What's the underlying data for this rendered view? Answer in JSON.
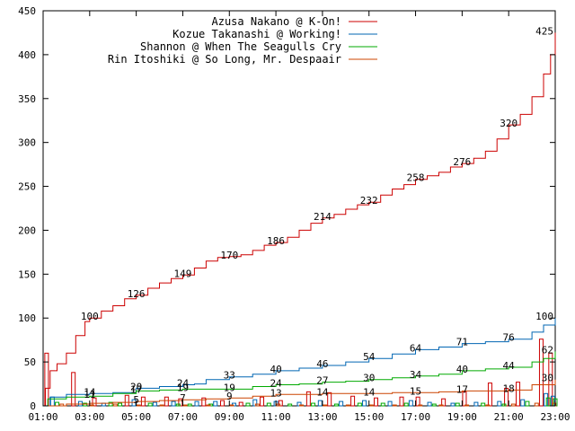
{
  "chart_data": {
    "type": "line",
    "title": "",
    "xlabel": "",
    "ylabel": "",
    "legend_position": "top-right",
    "grid": false,
    "xlim": [
      1,
      23
    ],
    "ylim": [
      0,
      450
    ],
    "x_ticks": [
      {
        "value": 1,
        "label": "01:00"
      },
      {
        "value": 3,
        "label": "03:00"
      },
      {
        "value": 5,
        "label": "05:00"
      },
      {
        "value": 7,
        "label": "07:00"
      },
      {
        "value": 9,
        "label": "09:00"
      },
      {
        "value": 11,
        "label": "11:00"
      },
      {
        "value": 13,
        "label": "13:00"
      },
      {
        "value": 15,
        "label": "15:00"
      },
      {
        "value": 17,
        "label": "17:00"
      },
      {
        "value": 19,
        "label": "19:00"
      },
      {
        "value": 21,
        "label": "21:00"
      },
      {
        "value": 23,
        "label": "23:00"
      }
    ],
    "y_ticks": [
      0,
      50,
      100,
      150,
      200,
      250,
      300,
      350,
      400,
      450
    ],
    "series": [
      {
        "name": "Azusa Nakano @ K-On!",
        "color": "#cc0000",
        "points": [
          [
            1,
            0
          ],
          [
            1.1,
            20
          ],
          [
            1.3,
            40
          ],
          [
            1.6,
            48
          ],
          [
            2,
            60
          ],
          [
            2.4,
            80
          ],
          [
            2.8,
            96
          ],
          [
            3,
            100
          ],
          [
            3.5,
            108
          ],
          [
            4,
            114
          ],
          [
            4.5,
            122
          ],
          [
            5,
            126
          ],
          [
            5.5,
            134
          ],
          [
            6,
            140
          ],
          [
            6.5,
            145
          ],
          [
            7,
            149
          ],
          [
            7.5,
            157
          ],
          [
            8,
            165
          ],
          [
            8.5,
            169
          ],
          [
            9,
            170
          ],
          [
            9.5,
            172
          ],
          [
            10,
            177
          ],
          [
            10.5,
            183
          ],
          [
            11,
            186
          ],
          [
            11.5,
            192
          ],
          [
            12,
            200
          ],
          [
            12.5,
            208
          ],
          [
            13,
            214
          ],
          [
            13.5,
            218
          ],
          [
            14,
            224
          ],
          [
            14.5,
            229
          ],
          [
            15,
            232
          ],
          [
            15.5,
            240
          ],
          [
            16,
            247
          ],
          [
            16.5,
            252
          ],
          [
            17,
            258
          ],
          [
            17.5,
            262
          ],
          [
            18,
            266
          ],
          [
            18.5,
            272
          ],
          [
            19,
            276
          ],
          [
            19.5,
            282
          ],
          [
            20,
            290
          ],
          [
            20.5,
            304
          ],
          [
            21,
            320
          ],
          [
            21.5,
            332
          ],
          [
            22,
            352
          ],
          [
            22.5,
            378
          ],
          [
            22.8,
            400
          ],
          [
            23,
            425
          ]
        ],
        "labels": [
          {
            "x": 3,
            "y": 100,
            "text": "100"
          },
          {
            "x": 5,
            "y": 126,
            "text": "126"
          },
          {
            "x": 7,
            "y": 149,
            "text": "149"
          },
          {
            "x": 9,
            "y": 170,
            "text": "170"
          },
          {
            "x": 11,
            "y": 186,
            "text": "186"
          },
          {
            "x": 13,
            "y": 214,
            "text": "214"
          },
          {
            "x": 15,
            "y": 232,
            "text": "232"
          },
          {
            "x": 17,
            "y": 258,
            "text": "258"
          },
          {
            "x": 19,
            "y": 276,
            "text": "276"
          },
          {
            "x": 21,
            "y": 320,
            "text": "320"
          },
          {
            "x": 23,
            "y": 425,
            "text": "425"
          }
        ]
      },
      {
        "name": "Kozue Takanashi @ Working!",
        "color": "#0066b3",
        "points": [
          [
            1,
            0
          ],
          [
            1.3,
            10
          ],
          [
            2,
            13
          ],
          [
            3,
            14
          ],
          [
            4,
            15
          ],
          [
            5,
            20
          ],
          [
            6,
            22
          ],
          [
            7,
            24
          ],
          [
            7.5,
            25
          ],
          [
            8,
            30
          ],
          [
            9,
            33
          ],
          [
            10,
            36
          ],
          [
            11,
            40
          ],
          [
            12,
            43
          ],
          [
            13,
            46
          ],
          [
            14,
            50
          ],
          [
            15,
            54
          ],
          [
            16,
            59
          ],
          [
            17,
            64
          ],
          [
            18,
            67
          ],
          [
            19,
            71
          ],
          [
            20,
            73
          ],
          [
            21,
            76
          ],
          [
            22,
            84
          ],
          [
            22.5,
            92
          ],
          [
            23,
            100
          ]
        ],
        "labels": [
          {
            "x": 3,
            "y": 14,
            "text": "14"
          },
          {
            "x": 5,
            "y": 20,
            "text": "20"
          },
          {
            "x": 7,
            "y": 24,
            "text": "24"
          },
          {
            "x": 9,
            "y": 33,
            "text": "33"
          },
          {
            "x": 11,
            "y": 40,
            "text": "40"
          },
          {
            "x": 13,
            "y": 46,
            "text": "46"
          },
          {
            "x": 15,
            "y": 54,
            "text": "54"
          },
          {
            "x": 17,
            "y": 64,
            "text": "64"
          },
          {
            "x": 19,
            "y": 71,
            "text": "71"
          },
          {
            "x": 21,
            "y": 76,
            "text": "76"
          },
          {
            "x": 23,
            "y": 100,
            "text": "100"
          }
        ]
      },
      {
        "name": "Shannon @ When The Seagulls Cry",
        "color": "#00aa00",
        "points": [
          [
            1,
            0
          ],
          [
            1.2,
            8
          ],
          [
            2,
            10
          ],
          [
            3,
            11
          ],
          [
            4,
            14
          ],
          [
            5,
            17
          ],
          [
            6,
            18
          ],
          [
            7,
            19
          ],
          [
            8,
            19
          ],
          [
            9,
            19
          ],
          [
            10,
            22
          ],
          [
            11,
            24
          ],
          [
            12,
            25
          ],
          [
            13,
            27
          ],
          [
            14,
            28
          ],
          [
            15,
            30
          ],
          [
            16,
            32
          ],
          [
            17,
            34
          ],
          [
            18,
            36
          ],
          [
            19,
            40
          ],
          [
            20,
            42
          ],
          [
            21,
            44
          ],
          [
            22,
            50
          ],
          [
            22.5,
            54
          ],
          [
            23,
            62
          ]
        ],
        "labels": [
          {
            "x": 3,
            "y": 11,
            "text": "11"
          },
          {
            "x": 5,
            "y": 17,
            "text": "17"
          },
          {
            "x": 7,
            "y": 19,
            "text": "19"
          },
          {
            "x": 9,
            "y": 19,
            "text": "19"
          },
          {
            "x": 11,
            "y": 24,
            "text": "24"
          },
          {
            "x": 13,
            "y": 27,
            "text": "27"
          },
          {
            "x": 15,
            "y": 30,
            "text": "30"
          },
          {
            "x": 17,
            "y": 34,
            "text": "34"
          },
          {
            "x": 19,
            "y": 40,
            "text": "40"
          },
          {
            "x": 21,
            "y": 44,
            "text": "44"
          },
          {
            "x": 23,
            "y": 62,
            "text": "62"
          }
        ]
      },
      {
        "name": "Rin Itoshiki @ So Long, Mr. Despaair",
        "color": "#cc4400",
        "points": [
          [
            1,
            0
          ],
          [
            2,
            2
          ],
          [
            3,
            3
          ],
          [
            4,
            4
          ],
          [
            5,
            5
          ],
          [
            6,
            6
          ],
          [
            7,
            7
          ],
          [
            8,
            8
          ],
          [
            9,
            9
          ],
          [
            10,
            11
          ],
          [
            11,
            13
          ],
          [
            12,
            13
          ],
          [
            13,
            14
          ],
          [
            14,
            14
          ],
          [
            15,
            14
          ],
          [
            16,
            15
          ],
          [
            17,
            15
          ],
          [
            18,
            16
          ],
          [
            19,
            17
          ],
          [
            20,
            17
          ],
          [
            21,
            18
          ],
          [
            22,
            24
          ],
          [
            23,
            30
          ]
        ],
        "labels": [
          {
            "x": 5,
            "y": 5,
            "text": "5"
          },
          {
            "x": 7,
            "y": 7,
            "text": "7"
          },
          {
            "x": 9,
            "y": 9,
            "text": "9"
          },
          {
            "x": 11,
            "y": 13,
            "text": "13"
          },
          {
            "x": 13,
            "y": 14,
            "text": "14"
          },
          {
            "x": 15,
            "y": 14,
            "text": "14"
          },
          {
            "x": 17,
            "y": 15,
            "text": "15"
          },
          {
            "x": 19,
            "y": 17,
            "text": "17"
          },
          {
            "x": 21,
            "y": 18,
            "text": "18"
          },
          {
            "x": 23,
            "y": 30,
            "text": "30"
          }
        ]
      }
    ],
    "bars": [
      {
        "series": 0,
        "color": "#cc0000",
        "values": [
          [
            1.15,
            60
          ],
          [
            2.3,
            38
          ],
          [
            3.2,
            9
          ],
          [
            4.6,
            12
          ],
          [
            5.3,
            10
          ],
          [
            6.3,
            10
          ],
          [
            6.9,
            8
          ],
          [
            7.9,
            9
          ],
          [
            8.7,
            6
          ],
          [
            9.5,
            4
          ],
          [
            10.4,
            10
          ],
          [
            11.2,
            6
          ],
          [
            12.4,
            16
          ],
          [
            13.3,
            15
          ],
          [
            14.3,
            11
          ],
          [
            15.3,
            9
          ],
          [
            16.4,
            10
          ],
          [
            17.1,
            10
          ],
          [
            18.2,
            8
          ],
          [
            19.1,
            16
          ],
          [
            20.2,
            26
          ],
          [
            20.9,
            20
          ],
          [
            21.4,
            27
          ],
          [
            22.4,
            76
          ],
          [
            22.8,
            60
          ]
        ]
      },
      {
        "series": 1,
        "color": "#0066b3",
        "values": [
          [
            1.4,
            10
          ],
          [
            2.6,
            5
          ],
          [
            3.6,
            3
          ],
          [
            4.9,
            7
          ],
          [
            5.8,
            4
          ],
          [
            6.6,
            5
          ],
          [
            7.6,
            5
          ],
          [
            8.4,
            5
          ],
          [
            9.2,
            3
          ],
          [
            10.1,
            7
          ],
          [
            11.0,
            5
          ],
          [
            12.0,
            4
          ],
          [
            12.9,
            6
          ],
          [
            13.8,
            5
          ],
          [
            14.8,
            6
          ],
          [
            15.9,
            5
          ],
          [
            16.8,
            6
          ],
          [
            17.6,
            4
          ],
          [
            18.6,
            3
          ],
          [
            19.6,
            4
          ],
          [
            20.6,
            5
          ],
          [
            21.6,
            7
          ],
          [
            22.6,
            14
          ],
          [
            22.9,
            11
          ]
        ]
      },
      {
        "series": 2,
        "color": "#00aa00",
        "values": [
          [
            1.6,
            4
          ],
          [
            2.8,
            3
          ],
          [
            3.9,
            4
          ],
          [
            4.3,
            3
          ],
          [
            5.6,
            3
          ],
          [
            6.8,
            2
          ],
          [
            7.3,
            2
          ],
          [
            8.2,
            2
          ],
          [
            9.8,
            3
          ],
          [
            10.7,
            3
          ],
          [
            11.6,
            2
          ],
          [
            12.6,
            3
          ],
          [
            13.6,
            2
          ],
          [
            14.6,
            3
          ],
          [
            15.6,
            3
          ],
          [
            16.6,
            3
          ],
          [
            17.8,
            2
          ],
          [
            18.8,
            3
          ],
          [
            19.9,
            3
          ],
          [
            20.8,
            2
          ],
          [
            21.8,
            5
          ],
          [
            22.7,
            9
          ],
          [
            23.0,
            8
          ]
        ]
      },
      {
        "series": 3,
        "color": "#cc4400",
        "values": [
          [
            1.8,
            2
          ],
          [
            3.1,
            1
          ],
          [
            4.1,
            2
          ],
          [
            5.1,
            1
          ],
          [
            6.1,
            1
          ],
          [
            7.1,
            1
          ],
          [
            8.1,
            1
          ],
          [
            9.1,
            1
          ],
          [
            10.2,
            2
          ],
          [
            11.1,
            2
          ],
          [
            12.1,
            1
          ],
          [
            13.1,
            1
          ],
          [
            14.1,
            1
          ],
          [
            15.1,
            1
          ],
          [
            16.1,
            1
          ],
          [
            17.2,
            1
          ],
          [
            18.1,
            1
          ],
          [
            19.2,
            1
          ],
          [
            20.1,
            1
          ],
          [
            21.2,
            2
          ],
          [
            22.2,
            3
          ],
          [
            22.95,
            3
          ]
        ]
      }
    ]
  }
}
